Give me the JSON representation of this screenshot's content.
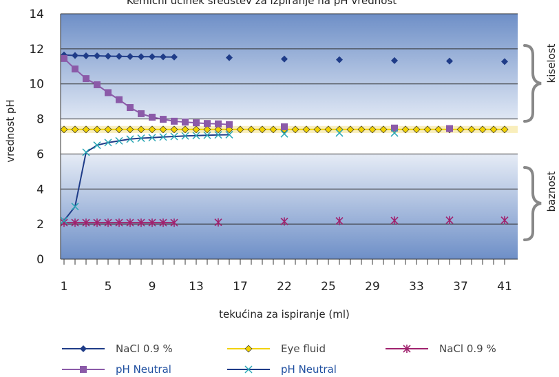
{
  "chart_data": {
    "type": "line",
    "title": "Kemični učinek sredstev za izpiranje na pH vrednost",
    "xlabel": "tekućina za ispiranje (ml)",
    "ylabel": "vrednost pH",
    "ylim": [
      0,
      14
    ],
    "yticks": [
      0,
      2,
      4,
      6,
      8,
      10,
      12,
      14
    ],
    "xticklabels": [
      "1",
      "5",
      "9",
      "13",
      "17",
      "22",
      "25",
      "29",
      "33",
      "37",
      "41"
    ],
    "grid": true,
    "legend_position": "bottom",
    "bands": {
      "upper_label": "kiselost",
      "lower_label": "baznost"
    },
    "colors": {
      "band_dark": "#6e8fc7",
      "band_light": "#e6ecf6",
      "middle_band": "#ffffff",
      "nacl_diamond": "#1f3c88",
      "eye_fluid": "#f2d200",
      "nacl_star": "#a0226e",
      "ph_neutral_square": "#8b5aa8",
      "ph_neutral_x": "#2aa7b5",
      "ph_neutral_line": "#1f3c88"
    },
    "series": [
      {
        "name": "NaCl 0.9 %",
        "marker": "diamond",
        "line": "#1f3c88",
        "marker_color": "#1f3c88",
        "points": [
          [
            1,
            11.65
          ],
          [
            2,
            11.62
          ],
          [
            3,
            11.6
          ],
          [
            4,
            11.6
          ],
          [
            5,
            11.58
          ],
          [
            6,
            11.57
          ],
          [
            7,
            11.56
          ],
          [
            8,
            11.55
          ],
          [
            9,
            11.55
          ],
          [
            10,
            11.54
          ],
          [
            11,
            11.53
          ],
          [
            16,
            11.5
          ],
          [
            21,
            11.42
          ],
          [
            26,
            11.38
          ],
          [
            31,
            11.33
          ],
          [
            36,
            11.3
          ],
          [
            41,
            11.27
          ]
        ],
        "line_until": 11
      },
      {
        "name": "Eye fluid",
        "marker": "diamond-open",
        "line": "#f2d200",
        "marker_color": "#f2d200",
        "points": [
          [
            1,
            7.4
          ],
          [
            2,
            7.4
          ],
          [
            3,
            7.4
          ],
          [
            4,
            7.4
          ],
          [
            5,
            7.4
          ],
          [
            6,
            7.4
          ],
          [
            7,
            7.4
          ],
          [
            8,
            7.4
          ],
          [
            9,
            7.4
          ],
          [
            10,
            7.4
          ],
          [
            11,
            7.4
          ],
          [
            12,
            7.4
          ],
          [
            13,
            7.4
          ],
          [
            14,
            7.4
          ],
          [
            15,
            7.4
          ],
          [
            16,
            7.4
          ],
          [
            17,
            7.4
          ],
          [
            18,
            7.4
          ],
          [
            19,
            7.4
          ],
          [
            20,
            7.4
          ],
          [
            21,
            7.4
          ],
          [
            22,
            7.4
          ],
          [
            23,
            7.4
          ],
          [
            24,
            7.4
          ],
          [
            25,
            7.4
          ],
          [
            26,
            7.4
          ],
          [
            27,
            7.4
          ],
          [
            28,
            7.4
          ],
          [
            29,
            7.4
          ],
          [
            30,
            7.4
          ],
          [
            31,
            7.4
          ],
          [
            32,
            7.4
          ],
          [
            33,
            7.4
          ],
          [
            34,
            7.4
          ],
          [
            35,
            7.4
          ],
          [
            36,
            7.4
          ],
          [
            37,
            7.4
          ],
          [
            38,
            7.4
          ],
          [
            39,
            7.4
          ],
          [
            40,
            7.4
          ],
          [
            41,
            7.4
          ]
        ],
        "line_until": 41
      },
      {
        "name": "NaCl 0.9 %",
        "marker": "star",
        "line": "#a0226e",
        "marker_color": "#a0226e",
        "points": [
          [
            1,
            2.08
          ],
          [
            2,
            2.08
          ],
          [
            3,
            2.08
          ],
          [
            4,
            2.08
          ],
          [
            5,
            2.08
          ],
          [
            6,
            2.08
          ],
          [
            7,
            2.08
          ],
          [
            8,
            2.08
          ],
          [
            9,
            2.08
          ],
          [
            10,
            2.08
          ],
          [
            11,
            2.08
          ],
          [
            15,
            2.1
          ],
          [
            21,
            2.15
          ],
          [
            26,
            2.18
          ],
          [
            31,
            2.2
          ],
          [
            36,
            2.22
          ],
          [
            41,
            2.22
          ]
        ],
        "line_until": 11
      },
      {
        "name": "pH Neutral",
        "marker": "square",
        "line": "#8b5aa8",
        "marker_color": "#8b5aa8",
        "points": [
          [
            1,
            11.45
          ],
          [
            2,
            10.85
          ],
          [
            3,
            10.3
          ],
          [
            4,
            9.95
          ],
          [
            5,
            9.5
          ],
          [
            6,
            9.1
          ],
          [
            7,
            8.65
          ],
          [
            8,
            8.3
          ],
          [
            9,
            8.1
          ],
          [
            10,
            7.98
          ],
          [
            11,
            7.87
          ],
          [
            12,
            7.82
          ],
          [
            13,
            7.78
          ],
          [
            14,
            7.74
          ],
          [
            15,
            7.72
          ],
          [
            16,
            7.68
          ],
          [
            21,
            7.55
          ],
          [
            31,
            7.48
          ],
          [
            36,
            7.45
          ]
        ],
        "line_until": 16
      },
      {
        "name": "pH Neutral",
        "marker": "x",
        "line": "#1f3c88",
        "marker_color": "#2aa7b5",
        "points": [
          [
            1,
            2.2
          ],
          [
            2,
            3.0
          ],
          [
            3,
            6.1
          ],
          [
            4,
            6.5
          ],
          [
            5,
            6.65
          ],
          [
            6,
            6.75
          ],
          [
            7,
            6.85
          ],
          [
            8,
            6.9
          ],
          [
            9,
            6.93
          ],
          [
            10,
            6.97
          ],
          [
            11,
            7.0
          ],
          [
            12,
            7.03
          ],
          [
            13,
            7.05
          ],
          [
            14,
            7.07
          ],
          [
            15,
            7.09
          ],
          [
            16,
            7.1
          ],
          [
            21,
            7.15
          ],
          [
            26,
            7.2
          ],
          [
            31,
            7.2
          ]
        ],
        "line_until": 16
      }
    ]
  }
}
